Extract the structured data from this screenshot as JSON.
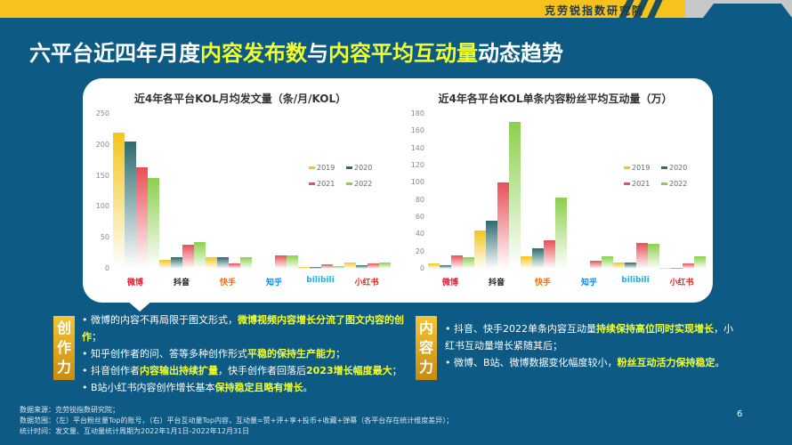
{
  "header": {
    "brand": "克劳锐指数研究院"
  },
  "title": {
    "part1": "六平台近四年月度",
    "hl1": "内容发布数",
    "part2": "与",
    "hl2": "内容平均互动量",
    "part3": "动态趋势"
  },
  "colors": {
    "2019": "#f5c518",
    "2020": "#2e6b6e",
    "2021": "#ea4e57",
    "2022": "#8ccf4d",
    "background": "#0d5a84",
    "accent": "#f7c21b"
  },
  "chart_data": [
    {
      "type": "bar",
      "title": "近4年各平台KOL月均发文量（条/月/KOL）",
      "categories": [
        "微博",
        "抖音",
        "快手",
        "知乎",
        "bilibili",
        "小红书"
      ],
      "series": [
        {
          "name": "2019",
          "values": [
            220,
            15,
            19,
            0,
            3,
            10
          ]
        },
        {
          "name": "2020",
          "values": [
            206,
            18,
            19,
            0,
            3,
            6
          ]
        },
        {
          "name": "2021",
          "values": [
            164,
            39,
            8,
            22,
            7,
            8
          ]
        },
        {
          "name": "2022",
          "values": [
            146,
            43,
            18,
            22,
            5,
            10
          ]
        }
      ],
      "yticks": [
        "250",
        "200",
        "150",
        "100",
        "50",
        "0"
      ],
      "ylim": [
        0,
        250
      ],
      "legend": [
        "2019",
        "2020",
        "2021",
        "2022"
      ]
    },
    {
      "type": "bar",
      "title": "近4年各平台KOL单条内容粉丝平均互动量（万）",
      "categories": [
        "微博",
        "抖音",
        "快手",
        "知乎",
        "bilibili",
        "小红书"
      ],
      "series": [
        {
          "name": "2019",
          "values": [
            6,
            45,
            14,
            0,
            7,
            1
          ]
        },
        {
          "name": "2020",
          "values": [
            4,
            56,
            24,
            0,
            7,
            1
          ]
        },
        {
          "name": "2021",
          "values": [
            16,
            100,
            33,
            9,
            30,
            6
          ]
        },
        {
          "name": "2022",
          "values": [
            13,
            171,
            83,
            14,
            29,
            15
          ]
        }
      ],
      "yticks": [
        "180",
        "160",
        "140",
        "120",
        "100",
        "80",
        "60",
        "40",
        "20",
        "0"
      ],
      "ylim": [
        0,
        180
      ],
      "legend": [
        "2019",
        "2020",
        "2021",
        "2022"
      ]
    }
  ],
  "left_notes": {
    "tag": "创作力",
    "items": [
      {
        "pre": "微博的内容不再局限于图文形式，",
        "hl": "微博视频内容增长分流了图文内容的创作",
        "post": "；"
      },
      {
        "pre": "知乎创作者的问、答等多种创作形式",
        "hl": "平稳的保持生产能力",
        "post": "；"
      },
      {
        "pre": "抖音创作者",
        "hl": "内容输出持续扩量",
        "post": "，快手创作者回落后",
        "hl2": "2023增长幅度最大",
        "post2": "；"
      },
      {
        "pre": "B站小红书内容创作增长基本",
        "hl": "保持稳定且略有增长",
        "post": "。"
      }
    ]
  },
  "right_notes": {
    "tag": "内容力",
    "items": [
      {
        "pre": "抖音、快手2022单条内容互动量",
        "hl": "持续保持高位同时实现增长",
        "post": "，小红书互动量增长紧随其后；"
      },
      {
        "pre": "微博、B站、微博数据变化幅度较小，",
        "hl": "粉丝互动活力保持稳定",
        "post": "。"
      }
    ]
  },
  "footer": {
    "source": "数据来源：克劳锐指数研究院；",
    "scope": "数据范围：（左）平台粉丝量Top的账号，（右）平台互动量Top内容，互动量=赞+评+享+投币+收藏+弹幕（各平台存在统计维度差异）；",
    "period": "统计时间：发文量、互动量统计周期为2022年1月1日-2022年12月31日"
  },
  "page_number": "6"
}
